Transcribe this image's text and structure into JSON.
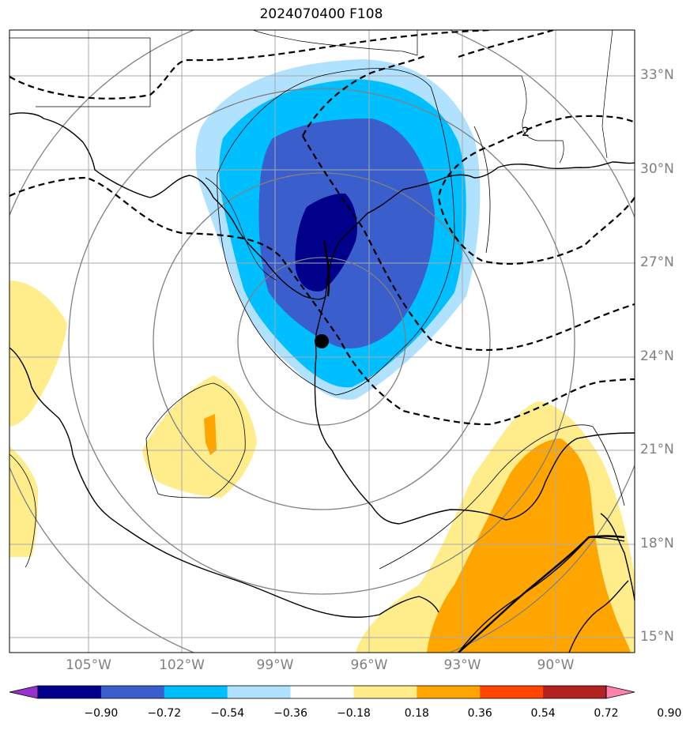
{
  "title": "2024070400 F108",
  "lat_labels": [
    "33°N",
    "30°N",
    "27°N",
    "24°N",
    "21°N",
    "18°N",
    "15°N"
  ],
  "lon_labels": [
    "105°W",
    "102°W",
    "99°W",
    "96°W",
    "93°W",
    "90°W"
  ],
  "contour_label": "2",
  "colorbar": {
    "ticks": [
      "−0.90",
      "−0.72",
      "−0.54",
      "−0.36",
      "−0.18",
      "0.18",
      "0.36",
      "0.54",
      "0.72",
      "0.90"
    ],
    "colors": [
      "#9932cc",
      "#00008b",
      "#3a5fcd",
      "#00bfff",
      "#b0e2ff",
      "#ffffff",
      "#ffec8b",
      "#ffa500",
      "#ff4500",
      "#b22222",
      "#ff82ab"
    ]
  },
  "storm_center": {
    "lat": 24.5,
    "lon": -97.5
  }
}
